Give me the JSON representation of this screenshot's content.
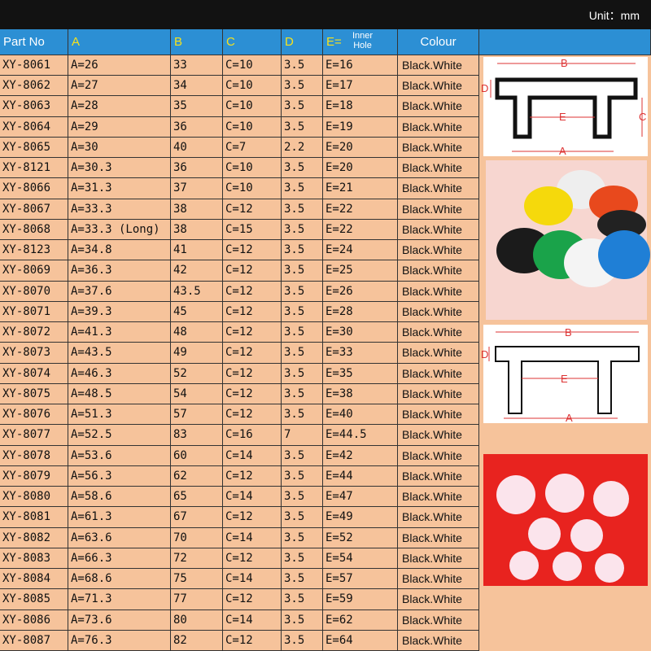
{
  "header": {
    "unit": "Unit：mm",
    "columns": [
      "Part No",
      "A",
      "B",
      "C",
      "D",
      "E=",
      "Colour"
    ],
    "e_note": [
      "Inner",
      "Hole"
    ]
  },
  "table": {
    "rows": [
      [
        "XY-8061",
        "A=26",
        "33",
        "C=10",
        "3.5",
        "E=16",
        "Black.White"
      ],
      [
        "XY-8062",
        "A=27",
        "34",
        "C=10",
        "3.5",
        "E=17",
        "Black.White"
      ],
      [
        "XY-8063",
        "A=28",
        "35",
        "C=10",
        "3.5",
        "E=18",
        "Black.White"
      ],
      [
        "XY-8064",
        "A=29",
        "36",
        "C=10",
        "3.5",
        "E=19",
        "Black.White"
      ],
      [
        "XY-8065",
        "A=30",
        "40",
        "C=7",
        "2.2",
        "E=20",
        "Black.White"
      ],
      [
        "XY-8121",
        "A=30.3",
        "36",
        "C=10",
        "3.5",
        "E=20",
        "Black.White"
      ],
      [
        "XY-8066",
        "A=31.3",
        "37",
        "C=10",
        "3.5",
        "E=21",
        "Black.White"
      ],
      [
        "XY-8067",
        "A=33.3",
        "38",
        "C=12",
        "3.5",
        "E=22",
        "Black.White"
      ],
      [
        "XY-8068",
        "A=33.3 (Long)",
        "38",
        "C=15",
        "3.5",
        "E=22",
        "Black.White"
      ],
      [
        "XY-8123",
        "A=34.8",
        "41",
        "C=12",
        "3.5",
        "E=24",
        "Black.White"
      ],
      [
        "XY-8069",
        "A=36.3",
        "42",
        "C=12",
        "3.5",
        "E=25",
        "Black.White"
      ],
      [
        "XY-8070",
        "A=37.6",
        "43.5",
        "C=12",
        "3.5",
        "E=26",
        "Black.White"
      ],
      [
        "XY-8071",
        "A=39.3",
        "45",
        "C=12",
        "3.5",
        "E=28",
        "Black.White"
      ],
      [
        "XY-8072",
        "A=41.3",
        "48",
        "C=12",
        "3.5",
        "E=30",
        "Black.White"
      ],
      [
        "XY-8073",
        "A=43.5",
        "49",
        "C=12",
        "3.5",
        "E=33",
        "Black.White"
      ],
      [
        "XY-8074",
        "A=46.3",
        "52",
        "C=12",
        "3.5",
        "E=35",
        "Black.White"
      ],
      [
        "XY-8075",
        "A=48.5",
        "54",
        "C=12",
        "3.5",
        "E=38",
        "Black.White"
      ],
      [
        "XY-8076",
        "A=51.3",
        "57",
        "C=12",
        "3.5",
        "E=40",
        "Black.White"
      ],
      [
        "XY-8077",
        "A=52.5",
        "83",
        "C=16",
        "7",
        "E=44.5",
        "Black.White"
      ],
      [
        "XY-8078",
        "A=53.6",
        "60",
        "C=14",
        "3.5",
        "E=42",
        "Black.White"
      ],
      [
        "XY-8079",
        "A=56.3",
        "62",
        "C=12",
        "3.5",
        "E=44",
        "Black.White"
      ],
      [
        "XY-8080",
        "A=58.6",
        "65",
        "C=14",
        "3.5",
        "E=47",
        "Black.White"
      ],
      [
        "XY-8081",
        "A=61.3",
        "67",
        "C=12",
        "3.5",
        "E=49",
        "Black.White"
      ],
      [
        "XY-8082",
        "A=63.6",
        "70",
        "C=14",
        "3.5",
        "E=52",
        "Black.White"
      ],
      [
        "XY-8083",
        "A=66.3",
        "72",
        "C=12",
        "3.5",
        "E=54",
        "Black.White"
      ],
      [
        "XY-8084",
        "A=68.6",
        "75",
        "C=14",
        "3.5",
        "E=57",
        "Black.White"
      ],
      [
        "XY-8085",
        "A=71.3",
        "77",
        "C=12",
        "3.5",
        "E=59",
        "Black.White"
      ],
      [
        "XY-8086",
        "A=73.6",
        "80",
        "C=14",
        "3.5",
        "E=62",
        "Black.White"
      ],
      [
        "XY-8087",
        "A=76.3",
        "82",
        "C=12",
        "3.5",
        "E=64",
        "Black.White"
      ]
    ]
  },
  "diagrams": [
    {
      "B": "B",
      "D": "D",
      "E": "E",
      "C": "C",
      "A": "A"
    },
    {
      "B": "B",
      "D": "D",
      "E": "E",
      "A": "A"
    }
  ]
}
